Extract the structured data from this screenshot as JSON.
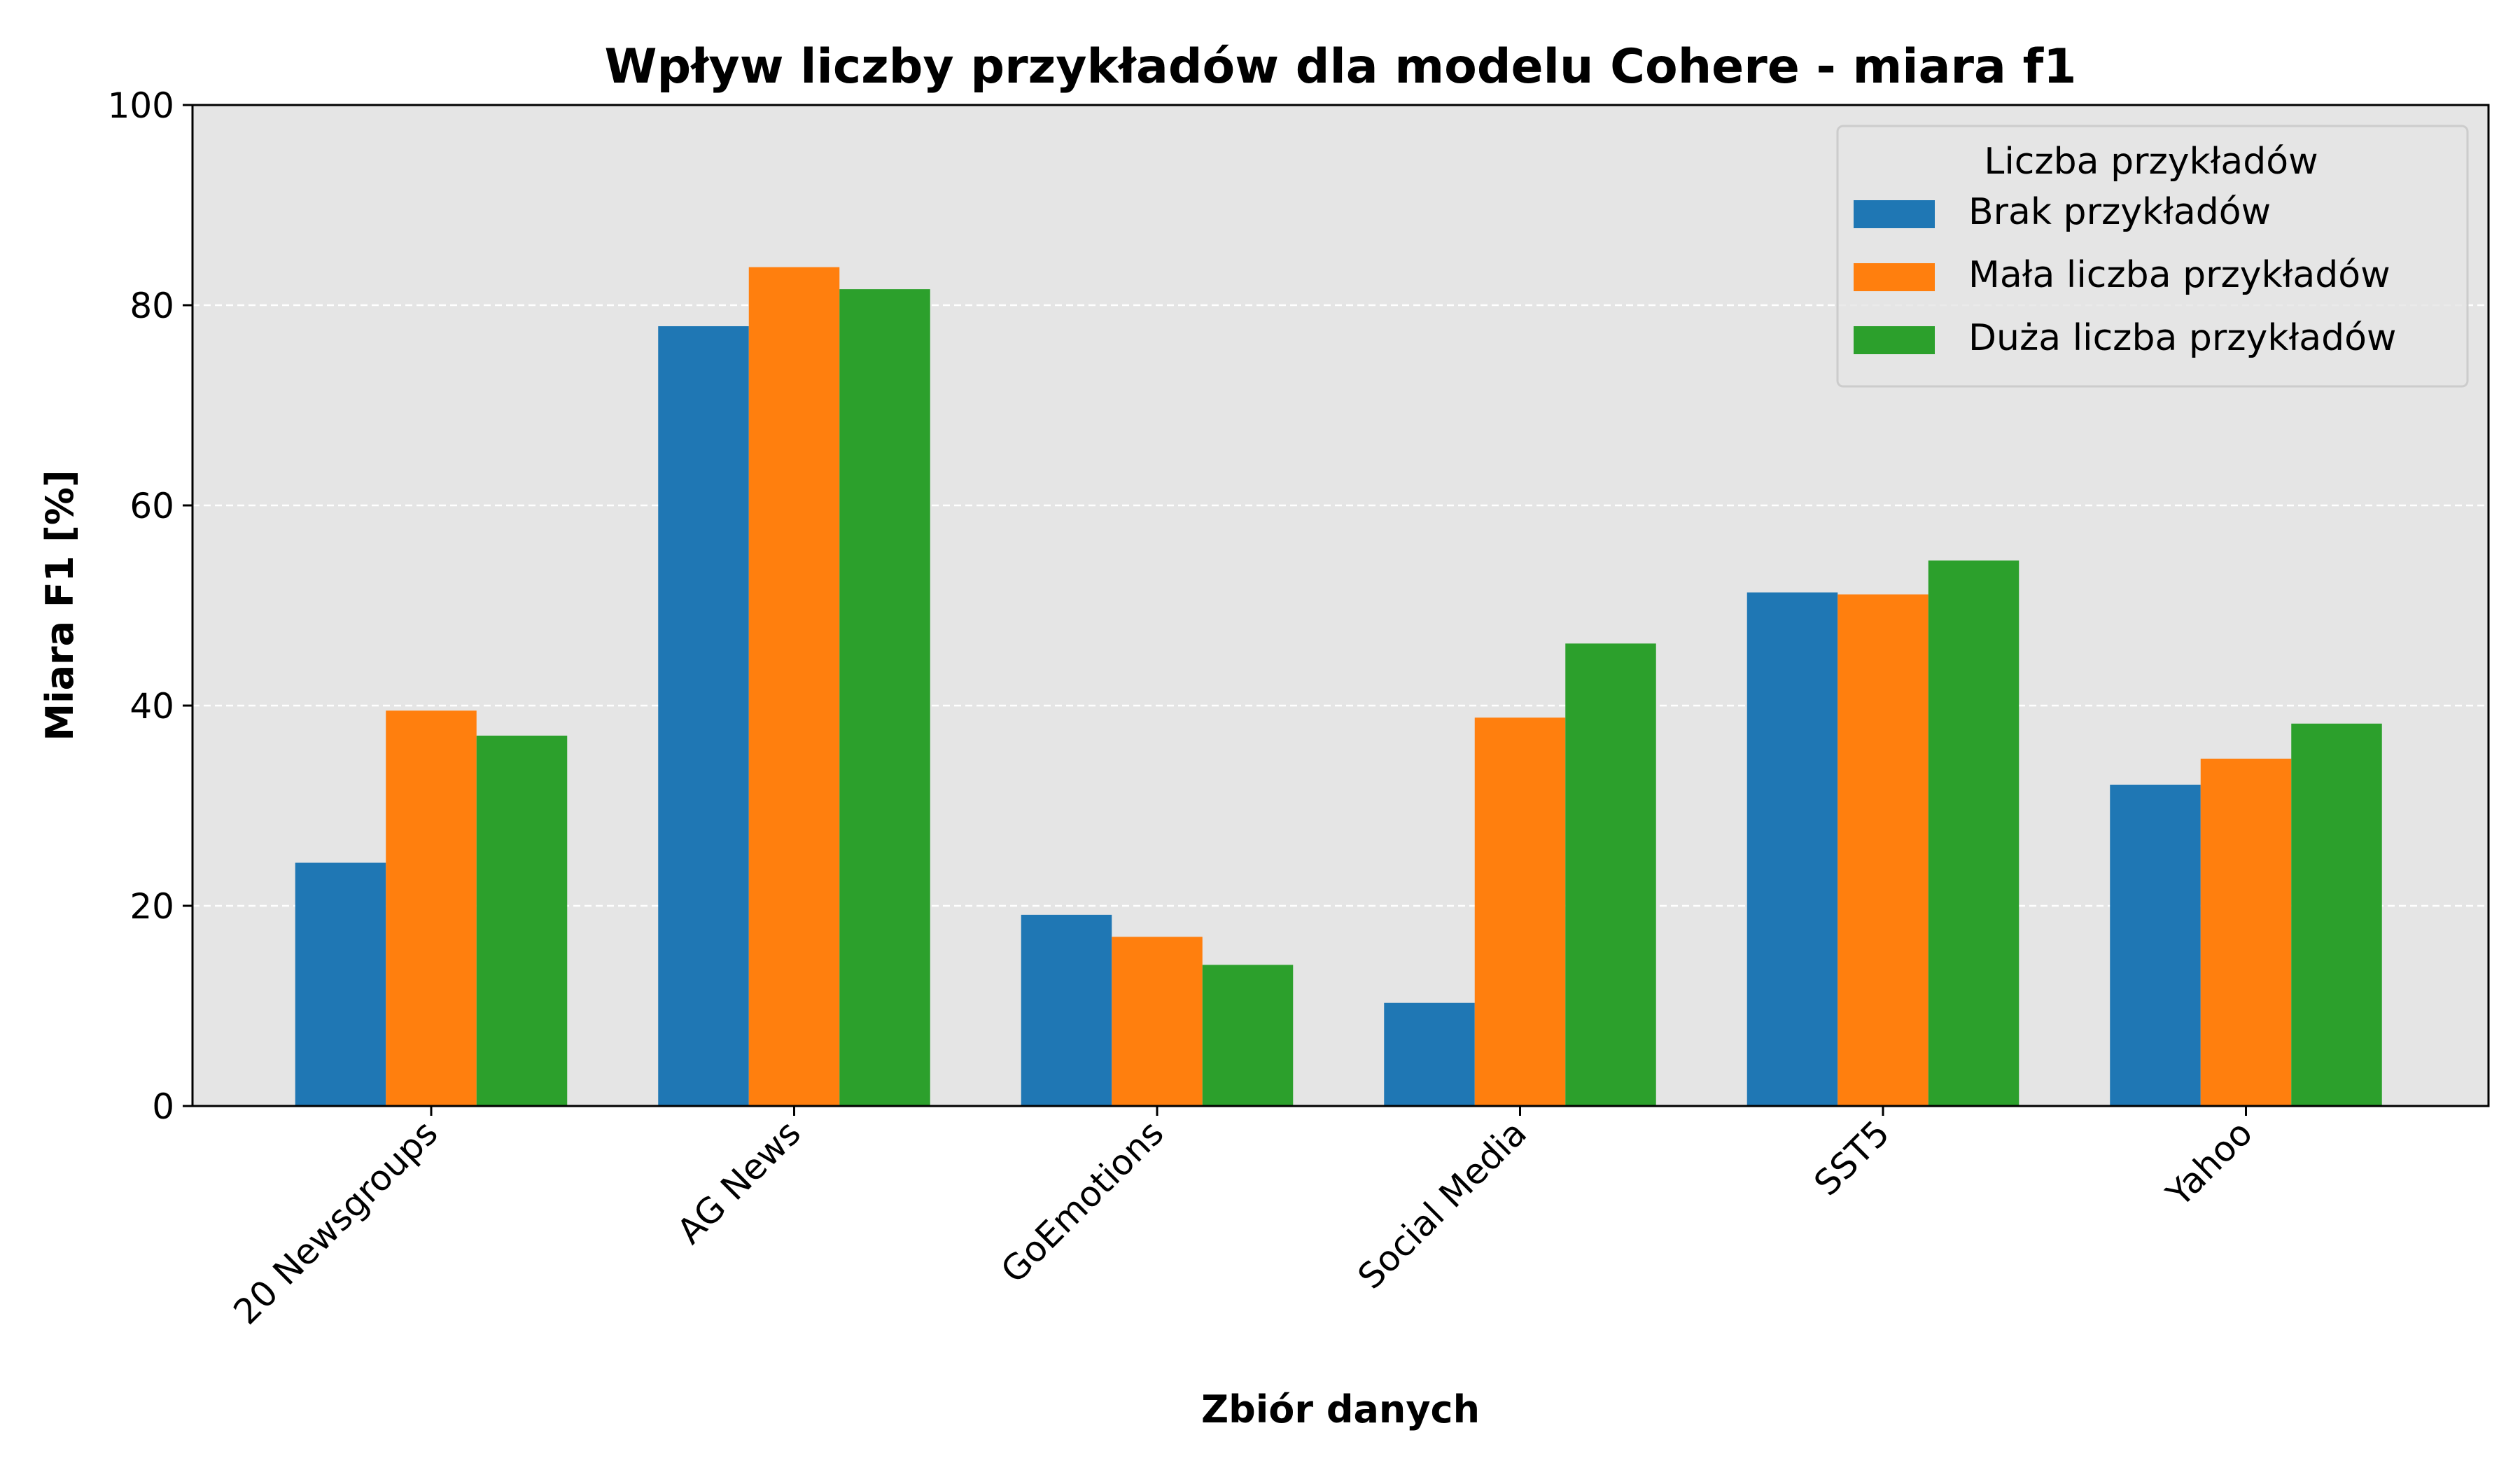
{
  "chart_data": {
    "type": "bar",
    "title": "Wpływ liczby przykładów  dla modelu Cohere - miara f1",
    "xlabel": "Zbiór danych",
    "ylabel": "Miara F1 [%]",
    "ylim": [
      0,
      100
    ],
    "yticks": [
      0,
      20,
      40,
      60,
      80,
      100
    ],
    "grid": "y-dashed",
    "legend": {
      "title": "Liczba przykładów",
      "placement": "top-right"
    },
    "categories": [
      "20 Newsgroups",
      "AG News",
      "GoEmotions",
      "Social Media",
      "SST5",
      "Yahoo"
    ],
    "series": [
      {
        "name": "Brak przykładów",
        "color": "#1f77b4",
        "values": [
          24.3,
          77.9,
          19.1,
          10.3,
          51.3,
          32.1
        ]
      },
      {
        "name": "Mała liczba przykładów",
        "color": "#ff7f0e",
        "values": [
          39.5,
          83.8,
          16.9,
          38.8,
          51.1,
          34.7
        ]
      },
      {
        "name": "Duża liczba przykładów",
        "color": "#2ca02c",
        "values": [
          37.0,
          81.6,
          14.1,
          46.2,
          54.5,
          38.2
        ]
      }
    ],
    "plot_background": "#e5e5e5"
  }
}
